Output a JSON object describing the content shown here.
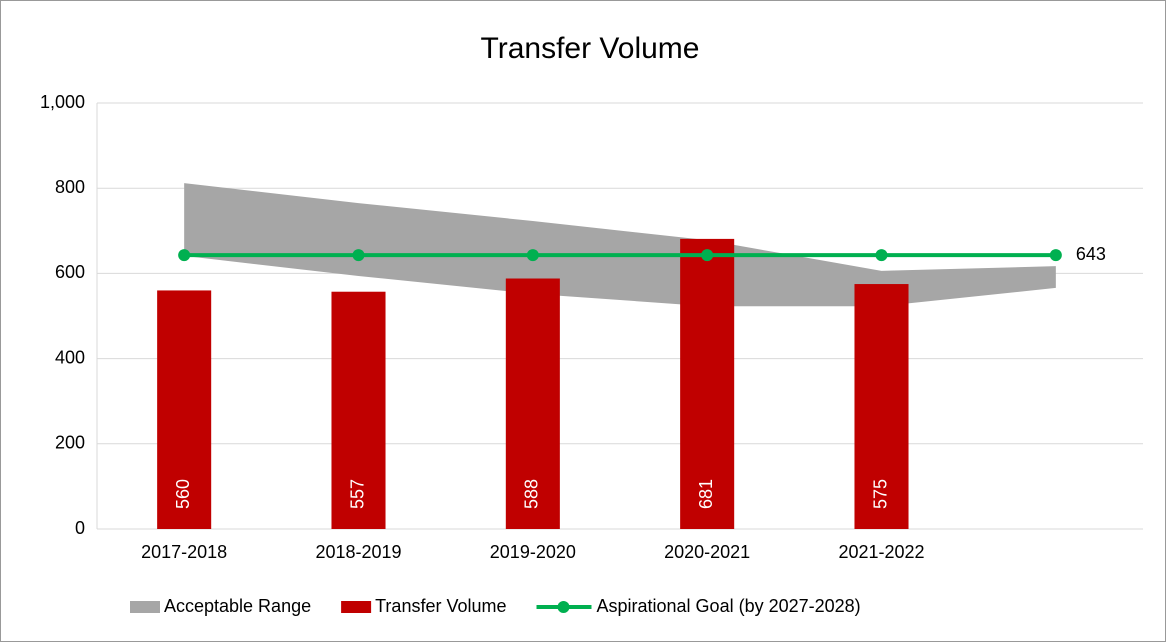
{
  "chart_data": {
    "type": "bar",
    "title": "Transfer Volume",
    "categories": [
      "2017-2018",
      "2018-2019",
      "2019-2020",
      "2020-2021",
      "2021-2022",
      null
    ],
    "ylim": [
      0,
      1000
    ],
    "yticks": [
      0,
      200,
      400,
      600,
      800,
      {
        "value": 1000,
        "label": "1,000"
      }
    ],
    "grid": true,
    "legend": "bottom",
    "series": [
      {
        "name": "Acceptable Range",
        "type": "area-band",
        "color": "#a6a6a6",
        "low": [
          641,
          594,
          552,
          523,
          523,
          566
        ],
        "high": [
          812,
          765,
          723,
          678,
          606,
          617
        ]
      },
      {
        "name": "Transfer Volume",
        "type": "bar",
        "color": "#c00000",
        "values": [
          560,
          557,
          588,
          681,
          575,
          null
        ]
      },
      {
        "name": "Aspirational Goal (by 2027-2028)",
        "type": "line",
        "color": "#00b050",
        "values": [
          643,
          643,
          643,
          643,
          643,
          643
        ],
        "end_label": true
      }
    ]
  }
}
